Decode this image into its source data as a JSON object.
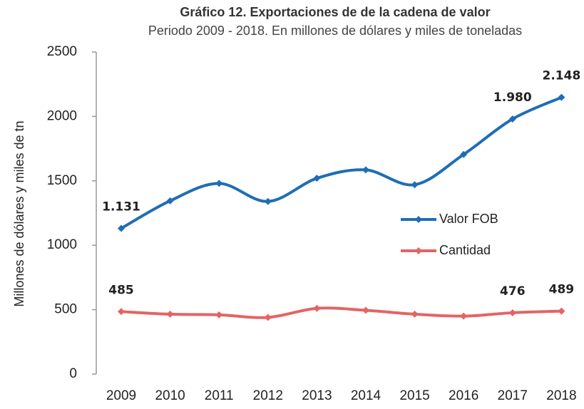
{
  "chart_data": {
    "type": "line",
    "title": "Gráfico 12. Exportaciones de de la cadena de valor",
    "subtitle": "Periodo 2009 - 2018. En millones de dólares y miles de toneladas",
    "y_label": "Millones de dólares y miles de tn",
    "categories": [
      "2009",
      "2010",
      "2011",
      "2012",
      "2013",
      "2014",
      "2015",
      "2016",
      "2017",
      "2018"
    ],
    "series": [
      {
        "name": "Valor FOB",
        "color": "#1f6db5",
        "values": [
          1131,
          1345,
          1480,
          1340,
          1520,
          1585,
          1470,
          1705,
          1980,
          2148
        ],
        "value_labels": [
          "1.131",
          null,
          null,
          null,
          null,
          null,
          null,
          null,
          "1.980",
          "2.148"
        ]
      },
      {
        "name": "Cantidad",
        "color": "#e46464",
        "values": [
          485,
          465,
          460,
          440,
          510,
          495,
          465,
          450,
          476,
          489
        ],
        "value_labels": [
          "485",
          null,
          null,
          null,
          null,
          null,
          null,
          null,
          "476",
          "489"
        ]
      }
    ],
    "ylim": [
      0,
      2500
    ],
    "yticks": [
      0,
      500,
      1000,
      1500,
      2000,
      2500
    ],
    "grid": false,
    "legend": "right"
  }
}
